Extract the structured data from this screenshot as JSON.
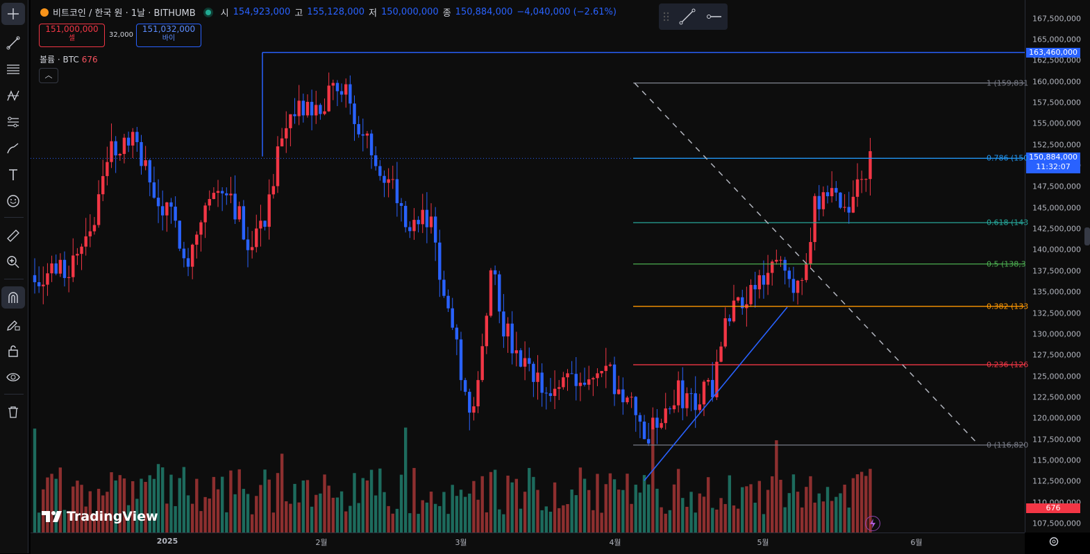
{
  "header": {
    "symbol_title": "비트코인 / 한국 원 · 1날 · BITHUMB",
    "ohlc": [
      {
        "label": "시",
        "value": "154,923,000"
      },
      {
        "label": "고",
        "value": "155,128,000"
      },
      {
        "label": "저",
        "value": "150,000,000"
      },
      {
        "label": "종",
        "value": "150,884,000"
      }
    ],
    "change": "−4,040,000 (−2.61%)",
    "sell_price": "151,000,000",
    "sell_label": "셀",
    "spread": "32,000",
    "buy_price": "151,032,000",
    "buy_label": "바이",
    "volume_legend_label": "볼륨 · BTC",
    "volume_legend_value": "676",
    "collapse_glyph": "︿"
  },
  "toolbar": {
    "tools": [
      "crosshair",
      "trend-line",
      "fib-retracement",
      "pattern",
      "projection",
      "brush",
      "text",
      "emoji",
      "ruler",
      "zoom-in",
      "magnet",
      "lock-drawings",
      "lock",
      "eye",
      "trash"
    ]
  },
  "price_axis": {
    "ticks": [
      "167,500,000",
      "165,000,000",
      "162,500,000",
      "160,000,000",
      "157,500,000",
      "155,000,000",
      "152,500,000",
      "150,000,000",
      "147,500,000",
      "145,000,000",
      "142,500,000",
      "140,000,000",
      "137,500,000",
      "135,000,000",
      "132,500,000",
      "130,000,000",
      "127,500,000",
      "125,000,000",
      "122,500,000",
      "120,000,000",
      "117,500,000",
      "115,000,000",
      "112,500,000",
      "110,000,000",
      "107,500,000"
    ],
    "horizontal_line_label": "163,460,000",
    "last_price_label": "150,884,000",
    "countdown": "11:32:07",
    "volume_label": "676"
  },
  "time_axis": {
    "labels": [
      "2025",
      "2월",
      "3월",
      "4월",
      "5월",
      "6월"
    ]
  },
  "fibonacci": {
    "levels": [
      {
        "label": "1 (159,831",
        "color": "#787b86"
      },
      {
        "label": "0.786 (150",
        "color": "#2196f3"
      },
      {
        "label": "0.618 (143",
        "color": "#26a69a"
      },
      {
        "label": "0.5 (138,3",
        "color": "#4caf50"
      },
      {
        "label": "0.382 (133",
        "color": "#ff9800"
      },
      {
        "label": "0.236 (126",
        "color": "#f23645"
      },
      {
        "label": "0 (116,820",
        "color": "#787b86"
      }
    ]
  },
  "watermark": "TradingView",
  "colors": {
    "up": "#f23645",
    "down": "#2962ff",
    "vol_up": "#8d2f2f",
    "vol_down": "#1d6b5d",
    "accent": "#2962ff"
  }
}
